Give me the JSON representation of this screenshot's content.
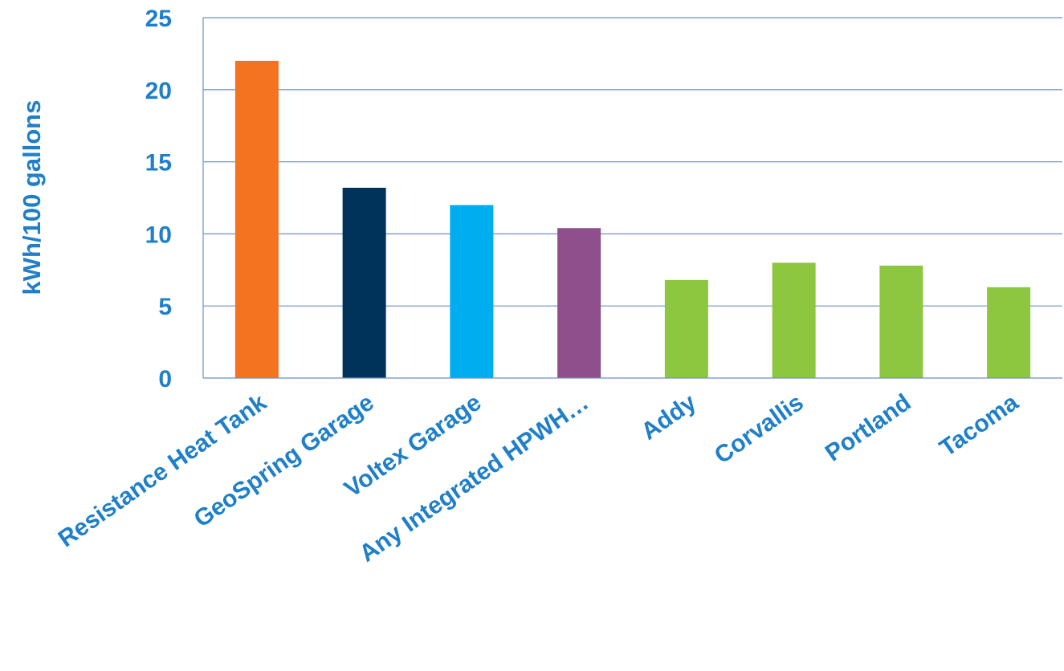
{
  "chart_data": {
    "type": "bar",
    "title": "",
    "xlabel": "",
    "ylabel": "kWh/100 gallons",
    "ylim": [
      0,
      25
    ],
    "yticks": [
      0,
      5,
      10,
      15,
      20,
      25
    ],
    "grid": true,
    "legend": "none",
    "categories": [
      "Resistance Heat Tank",
      "GeoSpring Garage",
      "Voltex Garage",
      "Any Integrated HPWH…",
      "Addy",
      "Corvallis",
      "Portland",
      "Tacoma"
    ],
    "values": [
      22.0,
      13.2,
      12.0,
      10.4,
      6.8,
      8.0,
      7.8,
      6.3
    ],
    "colors": [
      "#f37321",
      "#003359",
      "#00adef",
      "#8e4f8c",
      "#8dc63f",
      "#8dc63f",
      "#8dc63f",
      "#8dc63f"
    ]
  }
}
